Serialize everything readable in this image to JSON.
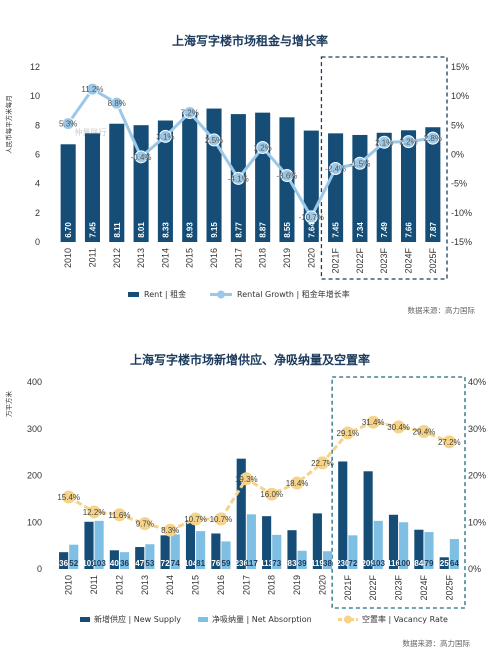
{
  "chart_data": [
    {
      "type": "bar+line",
      "title": "上海写字楼市场租金与增长率",
      "ylabel_left": "人民币每平方米每月",
      "categories": [
        "2010",
        "2011",
        "2012",
        "2013",
        "2014",
        "2015",
        "2016",
        "2017",
        "2018",
        "2019",
        "2020",
        "2021F",
        "2022F",
        "2023F",
        "2024F",
        "2025F"
      ],
      "bar_value_labels": [
        "6.70",
        "7.45",
        "8.11",
        "8.01",
        "8.33",
        "8.93",
        "9.15",
        "8.77",
        "8.87",
        "8.55",
        "7.64",
        "7.45",
        "7.34",
        "7.49",
        "7.66",
        "7.87"
      ],
      "series": [
        {
          "name": "Rent | 租金",
          "type": "bar",
          "axis": "left",
          "color": "#154d76",
          "values": [
            6.7,
            7.45,
            8.11,
            8.01,
            8.33,
            8.93,
            9.15,
            8.77,
            8.87,
            8.55,
            7.64,
            7.45,
            7.34,
            7.49,
            7.66,
            7.87
          ]
        },
        {
          "name": "Rental Growth | 租金年增长率",
          "type": "line",
          "axis": "right",
          "color": "#9cc8e8",
          "values": [
            5.3,
            11.2,
            8.8,
            -0.4,
            3.1,
            7.2,
            2.5,
            -4.1,
            1.2,
            -3.6,
            -10.7,
            -2.4,
            -1.5,
            2.1,
            2.2,
            2.8
          ],
          "labels": [
            "5.3%",
            "11.2%",
            "8.8%",
            "-0.4%",
            "3.1%",
            "7.2%",
            "2.5%",
            "-4.1%",
            "1.2%",
            "-3.6%",
            "-10.7%",
            "-2.4%",
            "-1.5%",
            "2.1%",
            "2.2%",
            "2.8%"
          ]
        }
      ],
      "ylim_left": [
        0,
        12
      ],
      "yticks_left": [
        "0",
        "2",
        "4",
        "6",
        "8",
        "10",
        "12"
      ],
      "ylim_right": [
        -15,
        15
      ],
      "yticks_right": [
        "-15%",
        "-10%",
        "-5%",
        "0%",
        "5%",
        "10%",
        "15%"
      ],
      "forecast_box": {
        "from": "2021F",
        "to": "2025F",
        "style": "dashed",
        "color": "#1e3d5c"
      },
      "legend": {
        "position": "bottom",
        "items": [
          "Rent | 租金",
          "Rental Growth | 租金年增长率"
        ]
      },
      "watermark": "仲量联行",
      "source": "数据来源：高力国际"
    },
    {
      "type": "bar+line",
      "title": "上海写字楼市场新增供应、净吸纳量及空置率",
      "ylabel_left": "万平方米",
      "categories": [
        "2010",
        "2011",
        "2012",
        "2013",
        "2014",
        "2015",
        "2016",
        "2017",
        "2018",
        "2019",
        "2020",
        "2021F",
        "2022F",
        "2023F",
        "2024F",
        "2025F"
      ],
      "series": [
        {
          "name": "新增供应 | New Supply",
          "type": "bar",
          "axis": "left",
          "color": "#154d76",
          "values": [
            36,
            101,
            40,
            47,
            72,
            104,
            76,
            236,
            113,
            83,
            119,
            230,
            209,
            116,
            84,
            25
          ],
          "labels": [
            "36",
            "101",
            "40",
            "47",
            "72",
            "104",
            "76",
            "236",
            "113",
            "83",
            "119",
            "230",
            "209",
            "116",
            "84",
            "25"
          ]
        },
        {
          "name": "净吸纳量 | Net Absorption",
          "type": "bar",
          "axis": "left",
          "color": "#7fbfe3",
          "values": [
            52,
            103,
            36,
            53,
            74,
            81,
            59,
            117,
            73,
            39,
            38,
            72,
            103,
            100,
            79,
            64
          ],
          "labels": [
            "52",
            "103",
            "36",
            "53",
            "74",
            "81",
            "59",
            "117",
            "73",
            "39",
            "38",
            "72",
            "103",
            "100",
            "79",
            "64"
          ]
        },
        {
          "name": "空置率 | Vacancy Rate",
          "type": "line",
          "axis": "right",
          "color": "#f5d48a",
          "values": [
            15.4,
            12.2,
            11.6,
            9.7,
            8.3,
            10.7,
            10.7,
            19.3,
            16.0,
            18.4,
            22.7,
            29.1,
            31.4,
            30.4,
            29.4,
            27.2
          ],
          "labels": [
            "15.4%",
            "12.2%",
            "11.6%",
            "9.7%",
            "8.3%",
            "10.7%",
            "10.7%",
            "19.3%",
            "16.0%",
            "18.4%",
            "22.7%",
            "29.1%",
            "31.4%",
            "30.4%",
            "29.4%",
            "27.2%"
          ]
        }
      ],
      "ylim_left": [
        0,
        400
      ],
      "yticks_left": [
        "0",
        "100",
        "200",
        "300",
        "400"
      ],
      "ylim_right": [
        0,
        40
      ],
      "yticks_right": [
        "0%",
        "10%",
        "20%",
        "30%",
        "40%"
      ],
      "forecast_box": {
        "from": "2021F",
        "to": "2025F",
        "style": "dashed",
        "color": "#1e6a7c"
      },
      "legend": {
        "position": "bottom",
        "items": [
          "新增供应 | New Supply",
          "净吸纳量 | Net Absorption",
          "空置率 | Vacancy Rate"
        ]
      },
      "source": "数据来源：高力国际"
    }
  ]
}
